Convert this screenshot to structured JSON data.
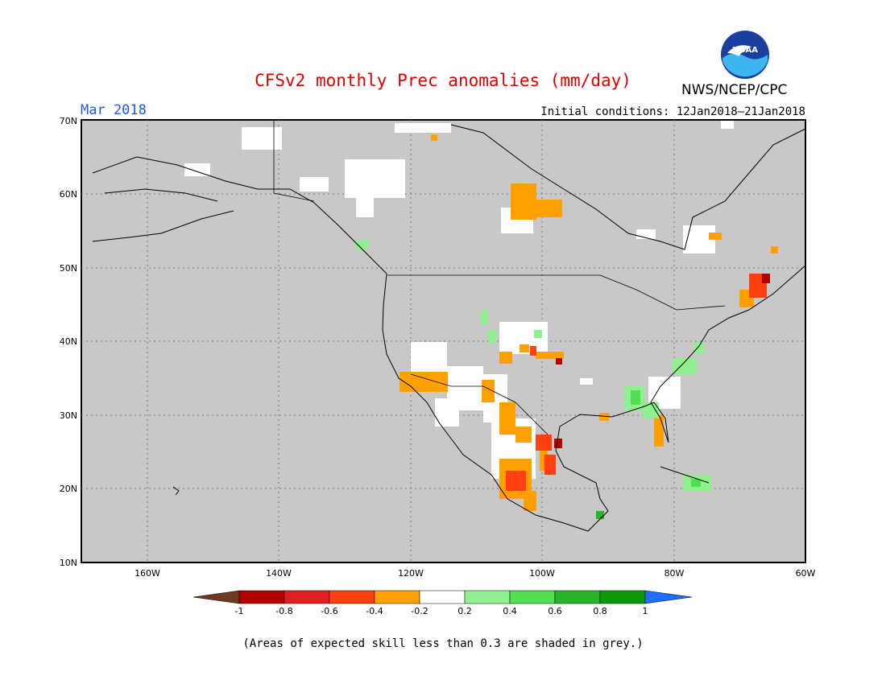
{
  "header": {
    "title": "CFSv2 monthly Prec anomalies (mm/day)",
    "month": "Mar 2018",
    "initial_conditions": "Initial conditions: 12Jan2018–21Jan2018",
    "organization": "NWS/NCEP/CPC",
    "logo_text": "NOAA"
  },
  "map": {
    "lat_labels": [
      "70N",
      "60N",
      "50N",
      "40N",
      "30N",
      "20N",
      "10N"
    ],
    "lon_labels": [
      "160W",
      "140W",
      "120W",
      "100W",
      "80W",
      "60W"
    ],
    "background_color": "#c8c8c8"
  },
  "legend": {
    "labels": [
      "-1",
      "-0.8",
      "-0.6",
      "-0.4",
      "-0.2",
      "0.2",
      "0.4",
      "0.6",
      "0.8",
      "1"
    ],
    "colors": [
      "#6e3a20",
      "#b40000",
      "#e02020",
      "#ff4010",
      "#ffa000",
      "#ffffff",
      "#90f090",
      "#50e050",
      "#28b428",
      "#0a9a0a",
      "#1e6eff"
    ],
    "note": "(Areas of expected skill less than 0.3 are shaded in grey.)"
  }
}
